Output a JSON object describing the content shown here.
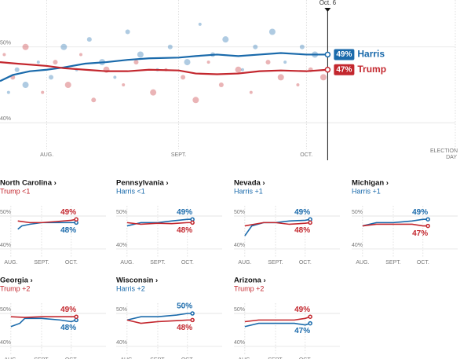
{
  "chart_data": [
    {
      "type": "line",
      "xlim": [
        "07-21",
        "11-05"
      ],
      "ylim": [
        36.5,
        56.2
      ],
      "yticks": [
        {
          "value": 50,
          "label": "50%"
        },
        {
          "value": 40,
          "label": "40%"
        }
      ],
      "xticks": [
        {
          "value": "08-01",
          "label": "AUG."
        },
        {
          "value": "09-01",
          "label": "SEPT."
        },
        {
          "value": "10-01",
          "label": "OCT."
        },
        {
          "value": "11-05",
          "label": "ELECTION DAY"
        }
      ],
      "marker": {
        "value": "10-06",
        "label": "Oct. 6"
      },
      "series": [
        {
          "name": "Harris",
          "color": "#1a6aab",
          "value_label": "49%",
          "x": [
            "07-21",
            "07-24",
            "07-28",
            "08-01",
            "08-05",
            "08-10",
            "08-15",
            "08-20",
            "08-25",
            "09-01",
            "09-05",
            "09-10",
            "09-15",
            "09-20",
            "09-25",
            "10-01",
            "10-06"
          ],
          "values": [
            45.5,
            46.3,
            46.8,
            47.0,
            47.3,
            47.8,
            48.0,
            48.3,
            48.5,
            48.6,
            48.8,
            49.0,
            48.8,
            49.0,
            49.2,
            49.0,
            49.0
          ],
          "polls": {
            "x": [
              "07-23",
              "07-25",
              "07-27",
              "07-30",
              "08-02",
              "08-05",
              "08-08",
              "08-11",
              "08-14",
              "08-17",
              "08-20",
              "08-23",
              "08-27",
              "08-30",
              "09-03",
              "09-06",
              "09-09",
              "09-12",
              "09-16",
              "09-19",
              "09-23",
              "09-26",
              "09-30",
              "10-03"
            ],
            "values": [
              44,
              47,
              45,
              48,
              46,
              50,
              47,
              51,
              48,
              46,
              52,
              49,
              47,
              50,
              48,
              53,
              49,
              51,
              47,
              50,
              52,
              48,
              50,
              49
            ]
          }
        },
        {
          "name": "Trump",
          "color": "#c3272e",
          "value_label": "47%",
          "x": [
            "07-21",
            "07-25",
            "08-01",
            "08-05",
            "08-10",
            "08-15",
            "08-20",
            "08-25",
            "09-01",
            "09-05",
            "09-10",
            "09-15",
            "09-20",
            "09-25",
            "10-01",
            "10-06"
          ],
          "values": [
            48.0,
            47.8,
            47.5,
            47.2,
            47.0,
            46.8,
            46.8,
            47.0,
            46.9,
            46.5,
            46.4,
            46.5,
            46.8,
            46.9,
            46.8,
            47.0
          ],
          "polls": {
            "x": [
              "07-22",
              "07-24",
              "07-27",
              "07-31",
              "08-03",
              "08-06",
              "08-09",
              "08-12",
              "08-15",
              "08-19",
              "08-22",
              "08-26",
              "08-29",
              "09-02",
              "09-05",
              "09-08",
              "09-11",
              "09-15",
              "09-18",
              "09-22",
              "09-25",
              "09-29",
              "10-02",
              "10-05"
            ],
            "values": [
              49,
              46,
              50,
              44,
              48,
              45,
              49,
              43,
              47,
              45,
              48,
              44,
              47,
              46,
              43,
              48,
              45,
              47,
              44,
              48,
              46,
              45,
              47,
              46
            ]
          }
        }
      ]
    },
    {
      "type": "line",
      "title": "North Carolina ›",
      "subtitle": "Trump <1",
      "subtitle_color": "#c3272e",
      "xlim": [
        "07-21",
        "11-05"
      ],
      "ylim": [
        37.6,
        53.1
      ],
      "yticks": [
        {
          "value": 50,
          "label": "50%"
        },
        {
          "value": 40,
          "label": "40%"
        }
      ],
      "xticks": [
        {
          "value": "08-01",
          "label": "AUG."
        },
        {
          "value": "09-01",
          "label": "SEPT."
        },
        {
          "value": "10-01",
          "label": "OCT."
        }
      ],
      "series": [
        {
          "name": "Harris",
          "color": "#1a6aab",
          "value_label": "48%",
          "x": [
            "08-08",
            "08-12",
            "08-20",
            "09-01",
            "09-15",
            "10-01",
            "10-06"
          ],
          "values": [
            46,
            47,
            47.5,
            48,
            48,
            48,
            48
          ]
        },
        {
          "name": "Trump",
          "color": "#c3272e",
          "value_label": "49%",
          "x": [
            "08-08",
            "08-20",
            "09-01",
            "09-15",
            "10-01",
            "10-06"
          ],
          "values": [
            48.5,
            48,
            48,
            48.3,
            48.7,
            49
          ]
        }
      ]
    },
    {
      "type": "line",
      "title": "Pennsylvania ›",
      "subtitle": "Harris <1",
      "subtitle_color": "#1a6aab",
      "xlim": [
        "07-21",
        "11-05"
      ],
      "ylim": [
        37.6,
        53.1
      ],
      "yticks": [
        {
          "value": 50,
          "label": "50%"
        },
        {
          "value": 40,
          "label": "40%"
        }
      ],
      "xticks": [
        {
          "value": "08-01",
          "label": "AUG."
        },
        {
          "value": "09-01",
          "label": "SEPT."
        },
        {
          "value": "10-01",
          "label": "OCT."
        }
      ],
      "series": [
        {
          "name": "Harris",
          "color": "#1a6aab",
          "value_label": "49%",
          "x": [
            "08-01",
            "08-15",
            "09-01",
            "09-15",
            "10-01",
            "10-06"
          ],
          "values": [
            47,
            48,
            48,
            48.5,
            49,
            49
          ]
        },
        {
          "name": "Trump",
          "color": "#c3272e",
          "value_label": "48%",
          "x": [
            "08-01",
            "08-15",
            "09-01",
            "09-15",
            "10-01",
            "10-06"
          ],
          "values": [
            48,
            47.5,
            47.8,
            47.7,
            48,
            48
          ]
        }
      ]
    },
    {
      "type": "line",
      "title": "Nevada ›",
      "subtitle": "Harris +1",
      "subtitle_color": "#1a6aab",
      "xlim": [
        "07-21",
        "11-05"
      ],
      "ylim": [
        37.6,
        53.1
      ],
      "yticks": [
        {
          "value": 50,
          "label": "50%"
        },
        {
          "value": 40,
          "label": "40%"
        }
      ],
      "xticks": [
        {
          "value": "08-01",
          "label": "AUG."
        },
        {
          "value": "09-01",
          "label": "SEPT."
        },
        {
          "value": "10-01",
          "label": "OCT."
        }
      ],
      "series": [
        {
          "name": "Harris",
          "color": "#1a6aab",
          "value_label": "49%",
          "x": [
            "08-01",
            "08-08",
            "08-20",
            "09-01",
            "09-15",
            "10-01",
            "10-06"
          ],
          "values": [
            44,
            47,
            48,
            48,
            48.5,
            48.7,
            49
          ]
        },
        {
          "name": "Trump",
          "color": "#c3272e",
          "value_label": "48%",
          "x": [
            "08-01",
            "08-20",
            "09-01",
            "09-15",
            "10-01",
            "10-06"
          ],
          "values": [
            47,
            48,
            48,
            47.5,
            47.8,
            48
          ]
        }
      ]
    },
    {
      "type": "line",
      "title": "Michigan ›",
      "subtitle": "Harris +1",
      "subtitle_color": "#1a6aab",
      "xlim": [
        "07-21",
        "11-05"
      ],
      "ylim": [
        37.6,
        53.1
      ],
      "yticks": [
        {
          "value": 50,
          "label": "50%"
        },
        {
          "value": 40,
          "label": "40%"
        }
      ],
      "xticks": [
        {
          "value": "08-01",
          "label": "AUG."
        },
        {
          "value": "09-01",
          "label": "SEPT."
        },
        {
          "value": "10-01",
          "label": "OCT."
        }
      ],
      "series": [
        {
          "name": "Harris",
          "color": "#1a6aab",
          "value_label": "49%",
          "x": [
            "08-01",
            "08-15",
            "09-01",
            "09-20",
            "10-01",
            "10-06"
          ],
          "values": [
            47,
            48,
            48,
            48.5,
            49,
            49
          ]
        },
        {
          "name": "Trump",
          "color": "#c3272e",
          "value_label": "47%",
          "x": [
            "08-01",
            "08-15",
            "09-01",
            "09-20",
            "10-01",
            "10-06"
          ],
          "values": [
            47,
            47.5,
            47.5,
            47.5,
            47,
            47
          ]
        }
      ]
    },
    {
      "type": "line",
      "title": "Georgia ›",
      "subtitle": "Trump +2",
      "subtitle_color": "#c3272e",
      "xlim": [
        "07-21",
        "11-05"
      ],
      "ylim": [
        37.6,
        53.1
      ],
      "yticks": [
        {
          "value": 50,
          "label": "50%"
        },
        {
          "value": 40,
          "label": "40%"
        }
      ],
      "xticks": [
        {
          "value": "08-01",
          "label": "AUG."
        },
        {
          "value": "09-01",
          "label": "SEPT."
        },
        {
          "value": "10-01",
          "label": "OCT."
        }
      ],
      "series": [
        {
          "name": "Harris",
          "color": "#1a6aab",
          "value_label": "48%",
          "x": [
            "08-01",
            "08-10",
            "08-15",
            "09-01",
            "09-20",
            "10-01",
            "10-06"
          ],
          "values": [
            46,
            47,
            48.5,
            48.5,
            48,
            47.5,
            48
          ]
        },
        {
          "name": "Trump",
          "color": "#c3272e",
          "value_label": "49%",
          "x": [
            "08-01",
            "08-15",
            "09-01",
            "09-20",
            "10-01",
            "10-06"
          ],
          "values": [
            49,
            48.8,
            49,
            49,
            49,
            49
          ]
        }
      ]
    },
    {
      "type": "line",
      "title": "Wisconsin ›",
      "subtitle": "Harris +2",
      "subtitle_color": "#1a6aab",
      "xlim": [
        "07-21",
        "11-05"
      ],
      "ylim": [
        37.6,
        53.1
      ],
      "yticks": [
        {
          "value": 50,
          "label": "50%"
        },
        {
          "value": 40,
          "label": "40%"
        }
      ],
      "xticks": [
        {
          "value": "08-01",
          "label": "AUG."
        },
        {
          "value": "09-01",
          "label": "SEPT."
        },
        {
          "value": "10-01",
          "label": "OCT."
        }
      ],
      "series": [
        {
          "name": "Harris",
          "color": "#1a6aab",
          "value_label": "50%",
          "x": [
            "08-01",
            "08-15",
            "09-01",
            "09-20",
            "10-01",
            "10-06"
          ],
          "values": [
            48,
            49,
            49,
            49.5,
            50,
            50
          ]
        },
        {
          "name": "Trump",
          "color": "#c3272e",
          "value_label": "48%",
          "x": [
            "08-01",
            "08-15",
            "09-01",
            "09-20",
            "10-01",
            "10-06"
          ],
          "values": [
            48,
            47,
            47.5,
            47.8,
            48,
            48
          ]
        }
      ]
    },
    {
      "type": "line",
      "title": "Arizona ›",
      "subtitle": "Trump +2",
      "subtitle_color": "#c3272e",
      "xlim": [
        "07-21",
        "11-05"
      ],
      "ylim": [
        37.6,
        53.1
      ],
      "yticks": [
        {
          "value": 50,
          "label": "50%"
        },
        {
          "value": 40,
          "label": "40%"
        }
      ],
      "xticks": [
        {
          "value": "08-01",
          "label": "AUG."
        },
        {
          "value": "09-01",
          "label": "SEPT."
        },
        {
          "value": "10-01",
          "label": "OCT."
        }
      ],
      "series": [
        {
          "name": "Harris",
          "color": "#1a6aab",
          "value_label": "47%",
          "x": [
            "08-01",
            "08-15",
            "09-01",
            "09-20",
            "10-01",
            "10-06"
          ],
          "values": [
            46,
            47,
            47,
            47,
            46.5,
            47
          ]
        },
        {
          "name": "Trump",
          "color": "#c3272e",
          "value_label": "49%",
          "x": [
            "08-01",
            "08-15",
            "09-01",
            "09-20",
            "10-01",
            "10-06"
          ],
          "values": [
            47.5,
            48,
            48,
            48,
            48.5,
            49
          ]
        }
      ]
    }
  ]
}
